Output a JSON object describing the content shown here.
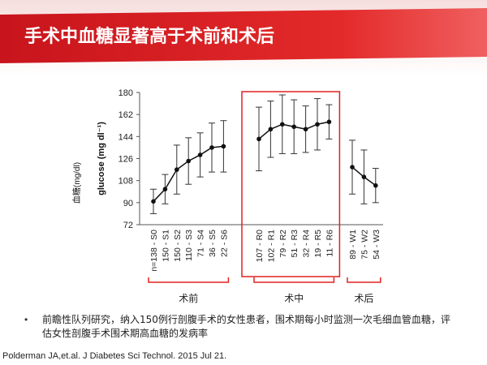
{
  "title": "手术中血糖显著高于术前和术后",
  "chart_data": {
    "type": "line",
    "ylabel": "glucose (mg dl⁻¹)",
    "ylabel_cn": "血糖(mg/dl)",
    "ylim": [
      72,
      180
    ],
    "yticks": [
      72,
      90,
      108,
      126,
      144,
      162,
      180
    ],
    "color": "#111111",
    "highlight_color": "#e02020",
    "series": [
      {
        "name": "术前",
        "categories": [
          "n=138 - S0",
          "150 - S1",
          "150 - S2",
          "110 - S3",
          "71 - S4",
          "36 - S5",
          "22 - S6"
        ],
        "values": [
          91,
          101,
          117,
          124,
          129,
          135,
          136
        ],
        "errors": [
          10,
          12,
          20,
          19,
          18,
          20,
          21
        ]
      },
      {
        "name": "术中",
        "categories": [
          "107 - R0",
          "102 - R1",
          "79 - R2",
          "51 - R3",
          "32 - R4",
          "19 - R5",
          "11 - R6"
        ],
        "values": [
          142,
          150,
          154,
          152,
          150,
          154,
          156
        ],
        "errors": [
          26,
          23,
          24,
          22,
          19,
          21,
          14
        ],
        "highlight": true
      },
      {
        "name": "术后",
        "categories": [
          "89 - W1",
          "75 - W2",
          "54 - W3"
        ],
        "values": [
          119,
          111,
          104
        ],
        "errors": [
          22,
          22,
          14
        ]
      }
    ]
  },
  "bullet": "前瞻性队列研究，纳入150例行剖腹手术的女性患者，围术期每小时监测一次毛细血管血糖，评估女性剖腹手术围术期高血糖的发病率",
  "citation": "Polderman JA,et.al. J Diabetes Sci Technol. 2015 Jul 21."
}
